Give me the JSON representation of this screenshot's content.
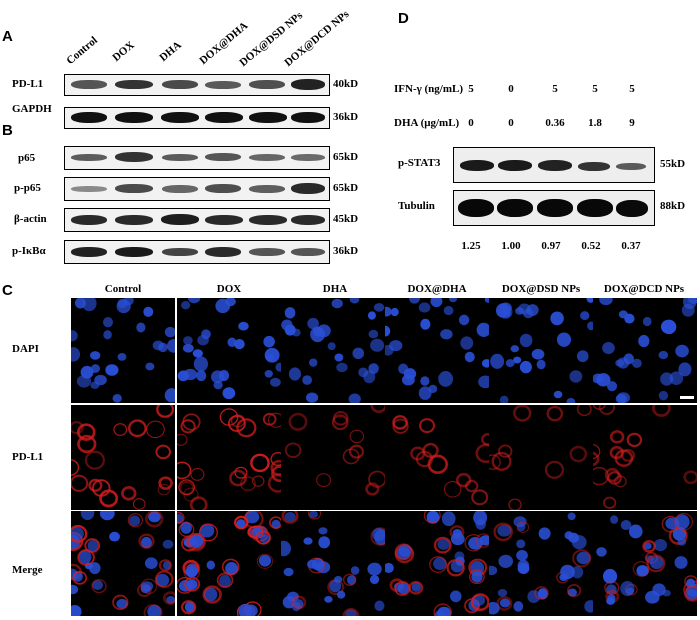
{
  "panels": {
    "A": "A",
    "B": "B",
    "C": "C",
    "D": "D"
  },
  "blot_lanes": [
    "Control",
    "DOX",
    "DHA",
    "DOX@DHA",
    "DOX@DSD NPs",
    "DOX@DCD NPs"
  ],
  "blot_a": [
    {
      "label": "PD-L1",
      "kd": "40kD"
    },
    {
      "label": "GAPDH",
      "kd": "36kD"
    }
  ],
  "blot_b": [
    {
      "label": "p65",
      "kd": "65kD"
    },
    {
      "label": "p-p65",
      "kd": "65kD"
    },
    {
      "label": "β-actin",
      "kd": "45kD"
    },
    {
      "label": "p-IκBα",
      "kd": "36kD"
    }
  ],
  "panel_d": {
    "ifn_label": "IFN-γ (ng/mL)",
    "ifn_values": [
      "5",
      "0",
      "5",
      "5",
      "5"
    ],
    "dha_label": "DHA (μg/mL)",
    "dha_values": [
      "0",
      "0",
      "0.36",
      "1.8",
      "9"
    ],
    "blots": [
      {
        "label": "p-STAT3",
        "kd": "55kD"
      },
      {
        "label": "Tubulin",
        "kd": "88kD"
      }
    ],
    "ratios": [
      "1.25",
      "1.00",
      "0.97",
      "0.52",
      "0.37"
    ]
  },
  "micro": {
    "columns": [
      "Control",
      "DOX",
      "DHA",
      "DOX@DHA",
      "DOX@DSD NPs",
      "DOX@DCD NPs"
    ],
    "rows": [
      "DAPI",
      "PD-L1",
      "Merge"
    ]
  },
  "colors": {
    "dapi": "#2a4fd6",
    "pdl1": "#d81e1e",
    "background": "#000000"
  }
}
